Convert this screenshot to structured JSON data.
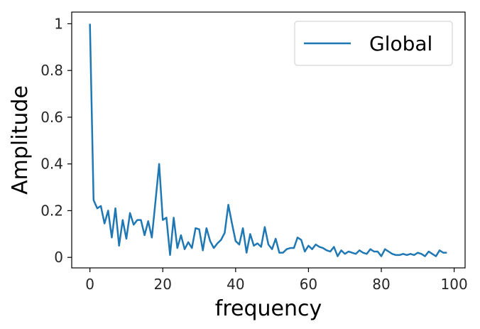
{
  "chart_data": {
    "type": "line",
    "title": "",
    "xlabel": "frequency",
    "ylabel": "Amplitude",
    "xlim": [
      -5,
      103
    ],
    "ylim": [
      -0.045,
      1.05
    ],
    "xticks": [
      0,
      20,
      40,
      60,
      80,
      100
    ],
    "yticks": [
      0,
      0.2,
      0.4,
      0.6,
      0.8,
      1
    ],
    "xtick_labels": [
      "0",
      "20",
      "40",
      "60",
      "80",
      "100"
    ],
    "ytick_labels": [
      "0",
      "0.2",
      "0.4",
      "0.6",
      "0.8",
      "1"
    ],
    "grid": false,
    "legend_position": "top-right",
    "series": [
      {
        "name": "Global",
        "color": "#1f77b4",
        "x": [
          0,
          1,
          2,
          3,
          4,
          5,
          6,
          7,
          8,
          9,
          10,
          11,
          12,
          13,
          14,
          15,
          16,
          17,
          18,
          19,
          20,
          21,
          22,
          23,
          24,
          25,
          26,
          27,
          28,
          29,
          30,
          31,
          32,
          33,
          34,
          35,
          36,
          37,
          38,
          39,
          40,
          41,
          42,
          43,
          44,
          45,
          46,
          47,
          48,
          49,
          50,
          51,
          52,
          53,
          54,
          55,
          56,
          57,
          58,
          59,
          60,
          61,
          62,
          63,
          64,
          65,
          66,
          67,
          68,
          69,
          70,
          71,
          72,
          73,
          74,
          75,
          76,
          77,
          78,
          79,
          80,
          81,
          82,
          83,
          84,
          85,
          86,
          87,
          88,
          89,
          90,
          91,
          92,
          93,
          94,
          95,
          96,
          97,
          98
        ],
        "y": [
          1.0,
          0.245,
          0.21,
          0.22,
          0.145,
          0.2,
          0.085,
          0.21,
          0.05,
          0.16,
          0.08,
          0.19,
          0.14,
          0.16,
          0.16,
          0.095,
          0.155,
          0.085,
          0.24,
          0.4,
          0.16,
          0.17,
          0.01,
          0.17,
          0.04,
          0.095,
          0.035,
          0.065,
          0.04,
          0.125,
          0.12,
          0.03,
          0.125,
          0.07,
          0.04,
          0.06,
          0.075,
          0.105,
          0.225,
          0.145,
          0.07,
          0.055,
          0.125,
          0.02,
          0.1,
          0.05,
          0.06,
          0.045,
          0.13,
          0.055,
          0.035,
          0.08,
          0.02,
          0.02,
          0.035,
          0.04,
          0.04,
          0.085,
          0.075,
          0.025,
          0.05,
          0.035,
          0.055,
          0.045,
          0.04,
          0.03,
          0.025,
          0.045,
          0.005,
          0.03,
          0.015,
          0.025,
          0.02,
          0.015,
          0.03,
          0.02,
          0.015,
          0.035,
          0.025,
          0.025,
          0.005,
          0.035,
          0.025,
          0.015,
          0.01,
          0.01,
          0.015,
          0.01,
          0.015,
          0.01,
          0.02,
          0.015,
          0.005,
          0.025,
          0.015,
          0.005,
          0.03,
          0.02,
          0.02
        ]
      }
    ]
  }
}
